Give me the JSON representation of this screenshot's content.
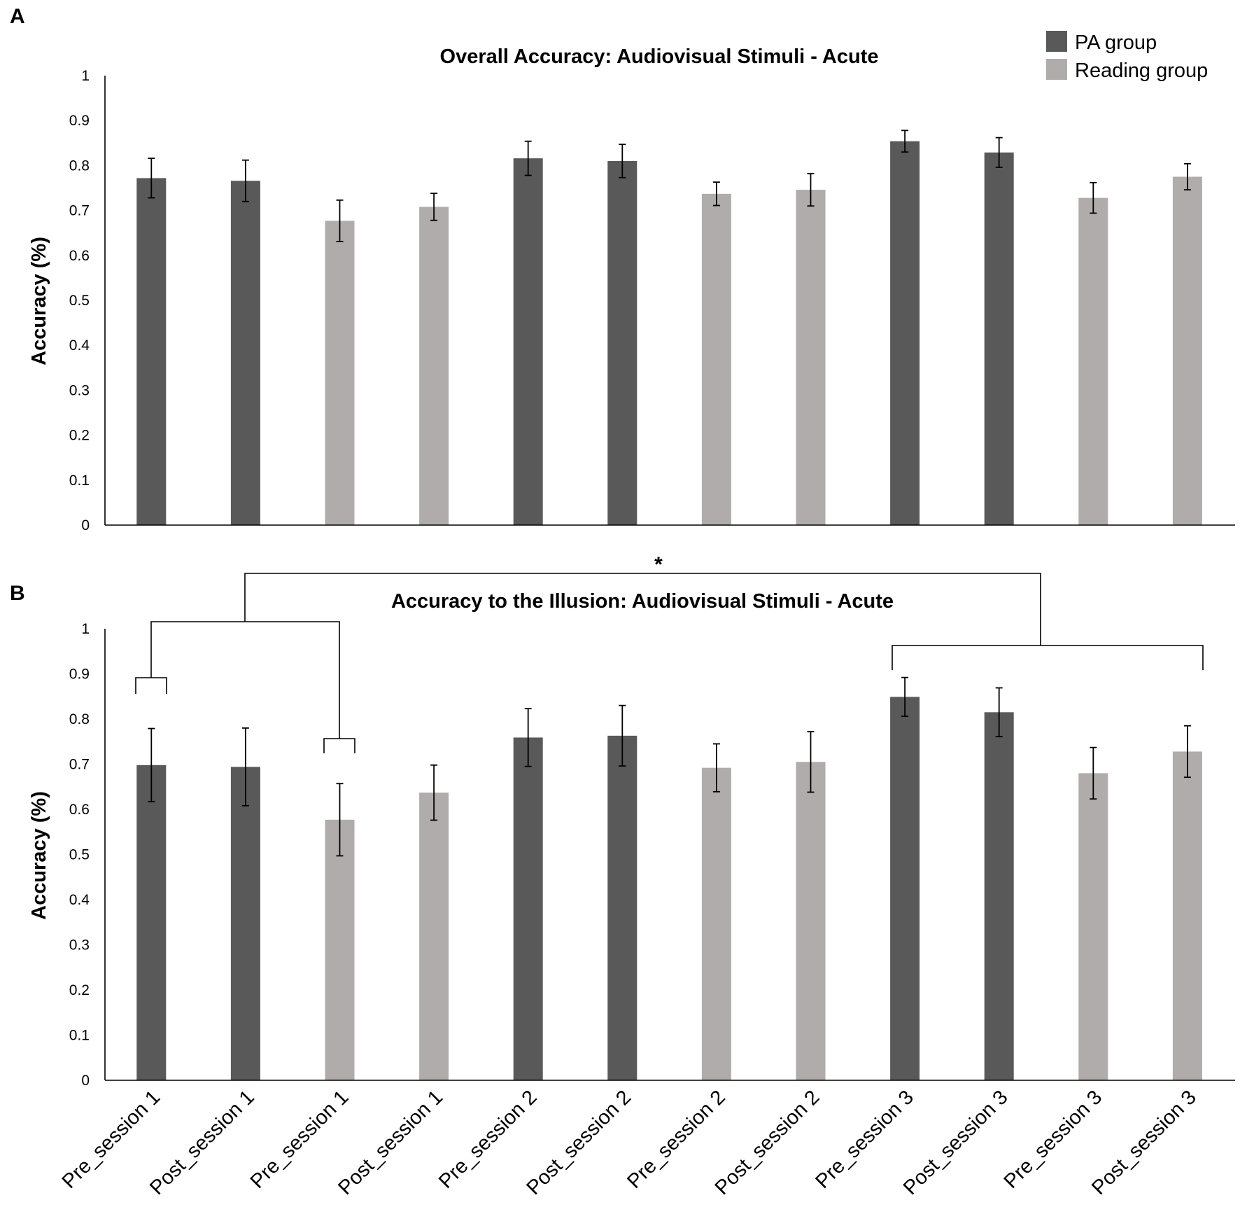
{
  "colors": {
    "pa": "#595959",
    "reading": "#afacab",
    "axis": "#000000"
  },
  "legend": [
    {
      "label": "PA group",
      "group": "pa"
    },
    {
      "label": "Reading group",
      "group": "reading"
    }
  ],
  "significance": {
    "marker": "*"
  },
  "chart_data": [
    {
      "type": "bar",
      "panel": "A",
      "title": "Overall Accuracy: Audiovisual Stimuli - Acute",
      "xlabel": "",
      "ylabel": "Accuracy (%)",
      "ylim": [
        0,
        1
      ],
      "yticks": [
        "0",
        "0.1",
        "0.2",
        "0.3",
        "0.4",
        "0.5",
        "0.6",
        "0.7",
        "0.8",
        "0.9",
        "1"
      ],
      "categories": [
        "Pre_session 1",
        "Post_session 1",
        "Pre_session 1",
        "Post_session 1",
        "Pre_session 2",
        "Post_session 2",
        "Pre_session 2",
        "Post_session 2",
        "Pre_session 3",
        "Post_session 3",
        "Pre_session 3",
        "Post_session 3"
      ],
      "groups": [
        "pa",
        "pa",
        "reading",
        "reading",
        "pa",
        "pa",
        "reading",
        "reading",
        "pa",
        "pa",
        "reading",
        "reading"
      ],
      "values": [
        0.772,
        0.766,
        0.677,
        0.708,
        0.816,
        0.81,
        0.737,
        0.746,
        0.854,
        0.829,
        0.728,
        0.775
      ],
      "errors": [
        0.044,
        0.046,
        0.046,
        0.03,
        0.038,
        0.037,
        0.026,
        0.036,
        0.024,
        0.033,
        0.034,
        0.029
      ],
      "show_xticklabels": false
    },
    {
      "type": "bar",
      "panel": "B",
      "title": "Accuracy to the Illusion: Audiovisual Stimuli - Acute",
      "xlabel": "",
      "ylabel": "Accuracy (%)",
      "ylim": [
        0,
        1
      ],
      "yticks": [
        "0",
        "0.1",
        "0.2",
        "0.3",
        "0.4",
        "0.5",
        "0.6",
        "0.7",
        "0.8",
        "0.9",
        "1"
      ],
      "categories": [
        "Pre_session 1",
        "Post_session 1",
        "Pre_session 1",
        "Post_session 1",
        "Pre_session 2",
        "Post_session 2",
        "Pre_session 2",
        "Post_session 2",
        "Pre_session 3",
        "Post_session 3",
        "Pre_session 3",
        "Post_session 3"
      ],
      "groups": [
        "pa",
        "pa",
        "reading",
        "reading",
        "pa",
        "pa",
        "reading",
        "reading",
        "pa",
        "pa",
        "reading",
        "reading"
      ],
      "values": [
        0.698,
        0.694,
        0.577,
        0.637,
        0.759,
        0.763,
        0.692,
        0.705,
        0.849,
        0.815,
        0.68,
        0.728
      ],
      "errors": [
        0.081,
        0.086,
        0.08,
        0.061,
        0.064,
        0.067,
        0.053,
        0.067,
        0.043,
        0.054,
        0.057,
        0.057
      ],
      "show_xticklabels": true
    }
  ]
}
